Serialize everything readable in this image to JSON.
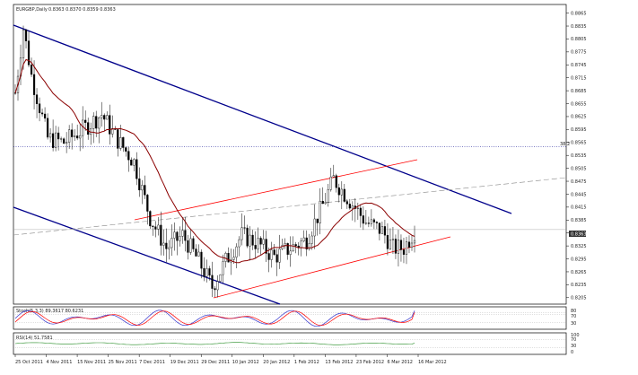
{
  "header": {
    "symbol": "EURGBP,Daily",
    "ohlc": "0.8363 0.8370 0.8359 0.8363"
  },
  "chart_data": {
    "type": "candlestick",
    "symbol": "EURGBP",
    "timeframe": "Daily",
    "price_axis": {
      "ylim": [
        0.819,
        0.8885
      ],
      "ticks": [
        "0.8865",
        "0.8835",
        "0.8805",
        "0.8775",
        "0.8745",
        "0.8715",
        "0.8685",
        "0.8655",
        "0.8625",
        "0.8595",
        "0.8565",
        "0.8535",
        "0.8505",
        "0.8475",
        "0.8445",
        "0.8415",
        "0.8385",
        "0.8355",
        "0.8325",
        "0.8295",
        "0.8265",
        "0.8235",
        "0.8205"
      ],
      "current_price_label": "0.8363",
      "current_price": 0.8363
    },
    "date_axis": {
      "labels": [
        "25 Oct 2011",
        "4 Nov 2011",
        "15 Nov 2011",
        "25 Nov 2011",
        "7 Dec 2011",
        "19 Dec 2011",
        "29 Dec 2011",
        "10 Jan 2012",
        "20 Jan 2012",
        "1 Feb 2012",
        "13 Feb 2012",
        "23 Feb 2012",
        "6 Mar 2012",
        "16 Mar 2012"
      ]
    },
    "fib_label": "38.2",
    "fib_level": 0.8555,
    "stoch": {
      "label": "Stoch(5,3,3) 89.3617 80.6231",
      "levels": [
        "80",
        "70",
        "30"
      ],
      "k": 89.3617,
      "d": 80.6231
    },
    "rsi": {
      "label": "RSI(14) 51.7581",
      "levels": [
        "100",
        "70",
        "30",
        "0"
      ],
      "value": 51.7581
    },
    "colors": {
      "candle": "#000000",
      "ma": "#8b0000",
      "main_channel": "#00008b",
      "rising_channel": "#ff0000",
      "fib_line": "#00008b",
      "dashed_trend": "#888888",
      "stoch_k": "#3333cc",
      "stoch_d": "#ff0000",
      "rsi": "#228b22"
    }
  }
}
